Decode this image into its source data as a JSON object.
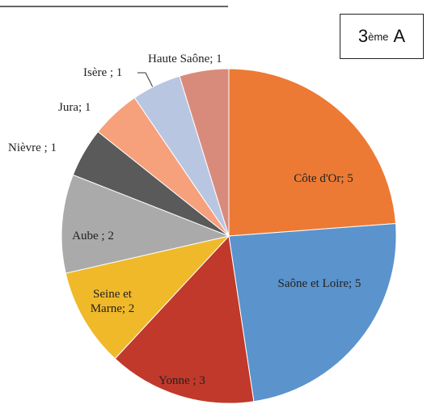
{
  "chart_data": {
    "type": "pie",
    "values": [
      5,
      5,
      3,
      2,
      2,
      1,
      1,
      1,
      1
    ],
    "value_labels": [
      "Côte d'Or; 5",
      "Saône et Loire; 5",
      "Yonne ; 3",
      "Seine et Marne; 2",
      "Aube ; 2",
      "Nièvre ; 1",
      "Jura; 1",
      "Isère ; 1",
      "Haute Saône; 1"
    ],
    "colors": [
      "#ec7a35",
      "#5b93cc",
      "#c0392b",
      "#f0b92a",
      "#aaaaaa",
      "#5a5a5a",
      "#f6a07c",
      "#b9c6e2",
      "#d98b7b"
    ],
    "annotation": {
      "number": "3",
      "superscript": "ème",
      "suffix": "A"
    }
  }
}
